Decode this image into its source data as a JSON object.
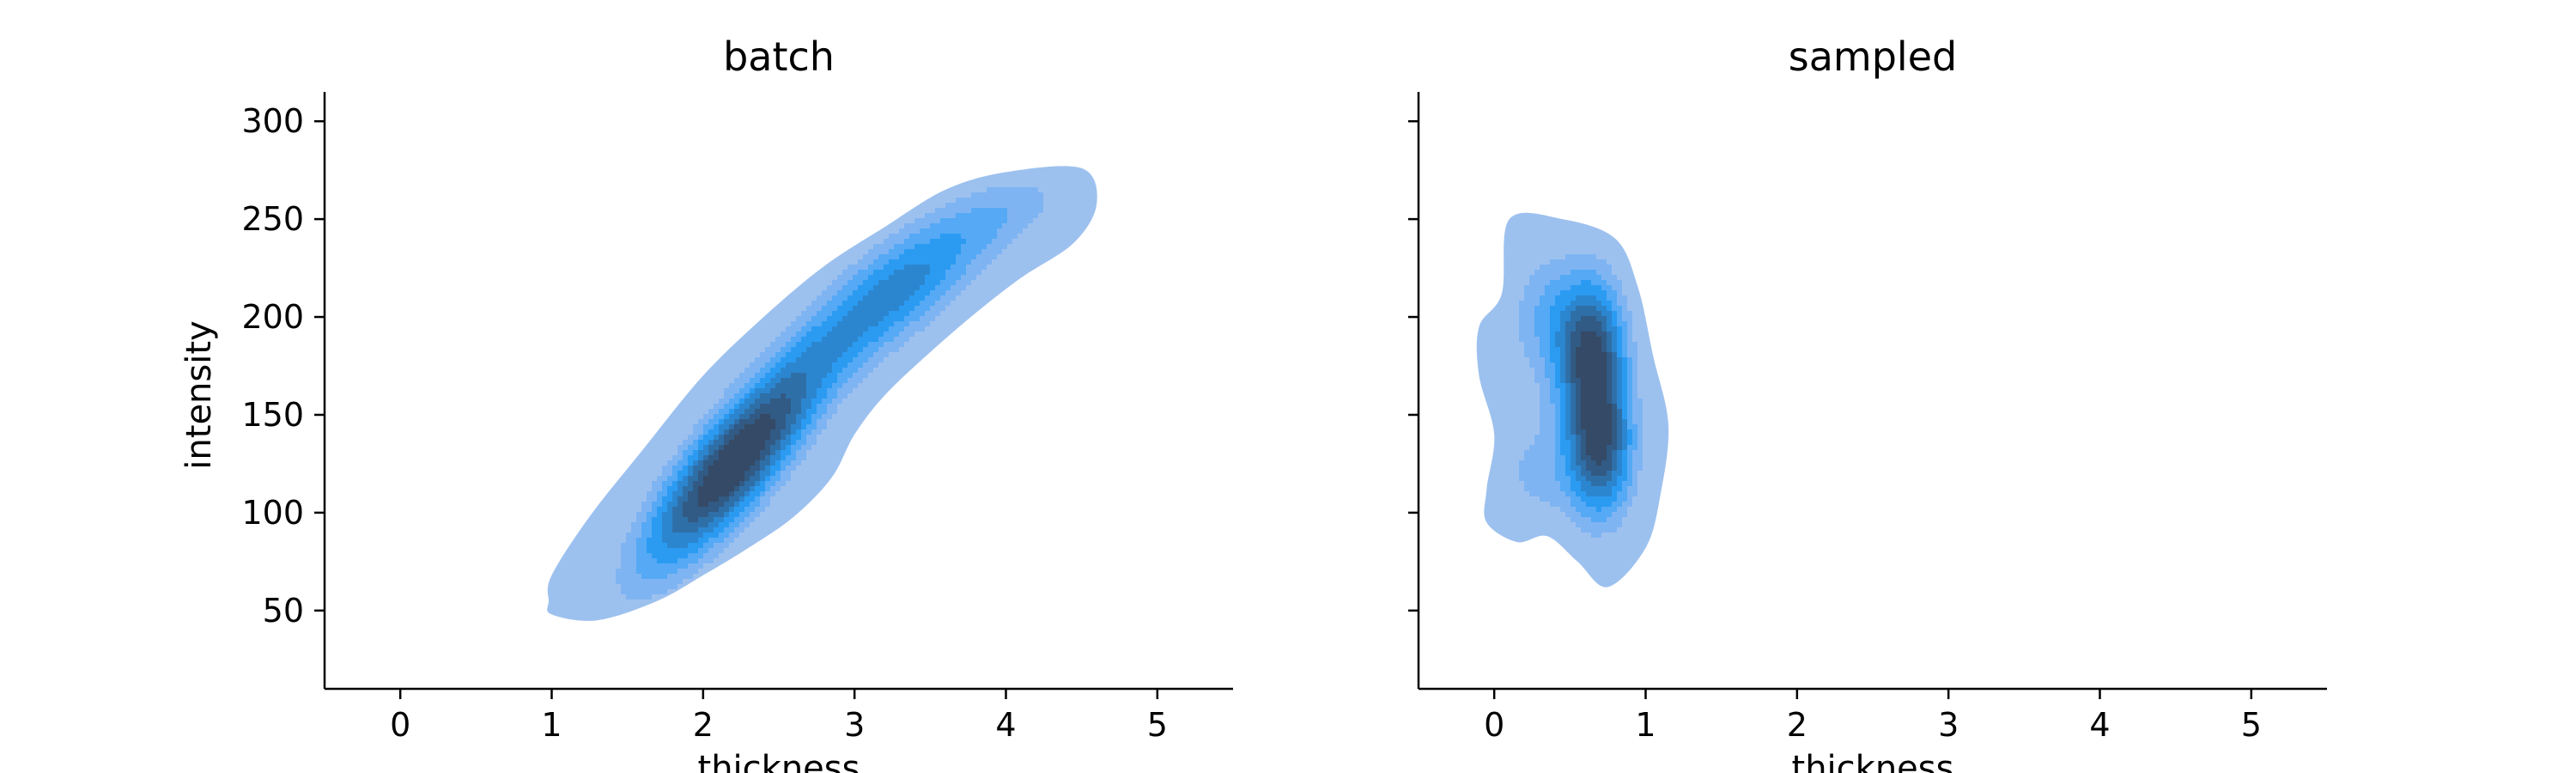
{
  "chart_data": [
    {
      "type": "kde-contour",
      "title": "batch",
      "xlabel": "thickness",
      "ylabel": "intensity",
      "xlim": [
        -0.5,
        5.5
      ],
      "ylim": [
        10,
        315
      ],
      "xticks": [
        0,
        1,
        2,
        3,
        4,
        5
      ],
      "yticks": [
        50,
        100,
        150,
        200,
        250,
        300
      ],
      "show_yticklabels": true,
      "grid": false,
      "color": "#1e90ff",
      "levels": 8,
      "outer_contour": [
        [
          1.0,
          48
        ],
        [
          1.3,
          45
        ],
        [
          1.7,
          55
        ],
        [
          2.0,
          68
        ],
        [
          2.3,
          82
        ],
        [
          2.6,
          98
        ],
        [
          2.85,
          118
        ],
        [
          3.0,
          140
        ],
        [
          3.2,
          160
        ],
        [
          3.5,
          182
        ],
        [
          3.8,
          202
        ],
        [
          4.1,
          220
        ],
        [
          4.45,
          238
        ],
        [
          4.6,
          258
        ],
        [
          4.5,
          276
        ],
        [
          4.0,
          274
        ],
        [
          3.6,
          265
        ],
        [
          3.2,
          246
        ],
        [
          2.8,
          226
        ],
        [
          2.4,
          200
        ],
        [
          2.0,
          170
        ],
        [
          1.6,
          132
        ],
        [
          1.25,
          98
        ],
        [
          1.0,
          68
        ],
        [
          0.98,
          55
        ]
      ],
      "components": [
        {
          "mx": 2.2,
          "my": 125,
          "sx": 0.42,
          "sy": 38,
          "rho": 0.82,
          "w": 1.0
        },
        {
          "mx": 3.3,
          "my": 215,
          "sx": 0.45,
          "sy": 30,
          "rho": 0.75,
          "w": 0.55
        },
        {
          "mx": 4.1,
          "my": 255,
          "sx": 0.3,
          "sy": 15,
          "rho": 0.5,
          "w": 0.15
        }
      ]
    },
    {
      "type": "kde-contour",
      "title": "sampled",
      "xlabel": "thickness",
      "ylabel": "",
      "xlim": [
        -0.5,
        5.5
      ],
      "ylim": [
        10,
        315
      ],
      "xticks": [
        0,
        1,
        2,
        3,
        4,
        5
      ],
      "yticks": [
        50,
        100,
        150,
        200,
        250,
        300
      ],
      "show_yticklabels": false,
      "grid": false,
      "color": "#1e90ff",
      "levels": 8,
      "outer_contour": [
        [
          0.1,
          250
        ],
        [
          0.45,
          250
        ],
        [
          0.8,
          240
        ],
        [
          0.95,
          215
        ],
        [
          1.05,
          180
        ],
        [
          1.15,
          145
        ],
        [
          1.1,
          110
        ],
        [
          1.0,
          82
        ],
        [
          0.75,
          62
        ],
        [
          0.55,
          75
        ],
        [
          0.35,
          88
        ],
        [
          0.15,
          85
        ],
        [
          -0.05,
          95
        ],
        [
          -0.05,
          112
        ],
        [
          0.0,
          140
        ],
        [
          -0.1,
          170
        ],
        [
          -0.1,
          195
        ],
        [
          0.05,
          212
        ]
      ],
      "components": [
        {
          "mx": 0.65,
          "my": 180,
          "sx": 0.16,
          "sy": 28,
          "rho": 0.0,
          "w": 1.0
        },
        {
          "mx": 0.7,
          "my": 130,
          "sx": 0.16,
          "sy": 25,
          "rho": 0.0,
          "w": 0.9
        },
        {
          "mx": 0.35,
          "my": 200,
          "sx": 0.2,
          "sy": 25,
          "rho": 0.0,
          "w": 0.35
        },
        {
          "mx": 0.25,
          "my": 120,
          "sx": 0.2,
          "sy": 22,
          "rho": 0.0,
          "w": 0.25
        }
      ]
    }
  ]
}
